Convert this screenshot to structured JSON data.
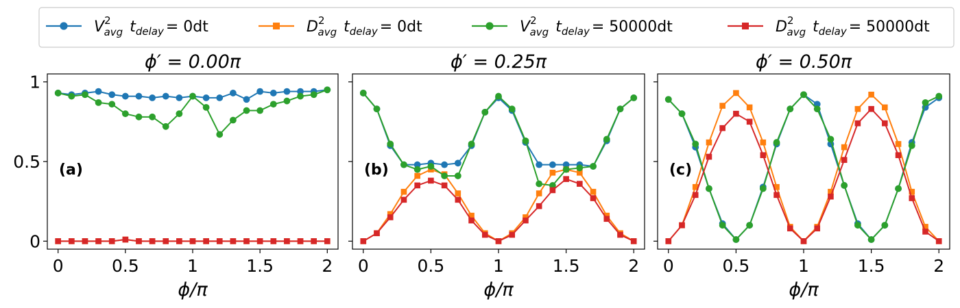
{
  "chart_data": {
    "type": "line",
    "x_values": [
      0,
      0.1,
      0.2,
      0.3,
      0.4,
      0.5,
      0.6,
      0.7,
      0.8,
      0.9,
      1.0,
      1.1,
      1.2,
      1.3,
      1.4,
      1.5,
      1.6,
      1.7,
      1.8,
      1.9,
      2.0
    ],
    "xlim": [
      -0.08,
      2.08
    ],
    "ylim": [
      -0.05,
      1.05
    ],
    "xticks": [
      0,
      0.5,
      1,
      1.5,
      2
    ],
    "xtick_labels": [
      "0",
      "0.5",
      "1",
      "1.5",
      "2"
    ],
    "yticks": [
      0,
      0.5,
      1
    ],
    "ytick_labels": [
      "0",
      "0.5",
      "1"
    ],
    "xlabel": "ϕ/π",
    "legend_position": "top, above panels, 4 columns",
    "legend": [
      {
        "base": "V",
        "sup": "2",
        "sub": "avg",
        "t": "t",
        "tsub": "delay",
        "rest": "= 0dt",
        "color": "#1f77b4",
        "marker": "circle"
      },
      {
        "base": "D",
        "sup": "2",
        "sub": "avg",
        "t": "t",
        "tsub": "delay",
        "rest": "= 0dt",
        "color": "#ff7f0e",
        "marker": "square"
      },
      {
        "base": "V",
        "sup": "2",
        "sub": "avg",
        "t": "t",
        "tsub": "delay",
        "rest": "= 50000dt",
        "color": "#2ca02c",
        "marker": "circle"
      },
      {
        "base": "D",
        "sup": "2",
        "sub": "avg",
        "t": "t",
        "tsub": "delay",
        "rest": "= 50000dt",
        "color": "#d62728",
        "marker": "square"
      }
    ],
    "panels": [
      {
        "title": "ϕ′ = 0.00π",
        "label": "(a)",
        "series": [
          {
            "color": "#1f77b4",
            "marker": "circle",
            "values": [
              0.93,
              0.92,
              0.93,
              0.94,
              0.92,
              0.91,
              0.91,
              0.9,
              0.91,
              0.9,
              0.91,
              0.9,
              0.9,
              0.93,
              0.89,
              0.94,
              0.93,
              0.94,
              0.94,
              0.94,
              0.95
            ]
          },
          {
            "color": "#ff7f0e",
            "marker": "square",
            "values": [
              0.0,
              0.0,
              0.0,
              0.0,
              0.0,
              0.01,
              0.0,
              0.0,
              0.0,
              0.0,
              0.0,
              0.0,
              0.0,
              0.0,
              0.0,
              0.0,
              0.0,
              0.0,
              0.0,
              0.0,
              0.0
            ]
          },
          {
            "color": "#2ca02c",
            "marker": "circle",
            "values": [
              0.93,
              0.91,
              0.92,
              0.87,
              0.86,
              0.8,
              0.78,
              0.78,
              0.72,
              0.8,
              0.91,
              0.84,
              0.67,
              0.76,
              0.82,
              0.82,
              0.86,
              0.88,
              0.91,
              0.92,
              0.95
            ]
          },
          {
            "color": "#d62728",
            "marker": "square",
            "values": [
              0.0,
              0.0,
              0.0,
              0.0,
              0.0,
              0.01,
              0.0,
              0.0,
              0.0,
              0.0,
              0.0,
              0.0,
              0.0,
              0.0,
              0.0,
              0.0,
              0.0,
              0.0,
              0.0,
              0.0,
              0.0
            ]
          }
        ]
      },
      {
        "title": "ϕ′ = 0.25π",
        "label": "(b)",
        "series": [
          {
            "color": "#1f77b4",
            "marker": "circle",
            "values": [
              0.93,
              0.83,
              0.6,
              0.48,
              0.48,
              0.49,
              0.48,
              0.49,
              0.6,
              0.81,
              0.9,
              0.82,
              0.62,
              0.48,
              0.48,
              0.48,
              0.48,
              0.47,
              0.63,
              0.83,
              0.9
            ]
          },
          {
            "color": "#ff7f0e",
            "marker": "square",
            "values": [
              0.0,
              0.05,
              0.17,
              0.31,
              0.41,
              0.45,
              0.42,
              0.3,
              0.16,
              0.05,
              0.0,
              0.05,
              0.15,
              0.3,
              0.43,
              0.45,
              0.43,
              0.31,
              0.16,
              0.05,
              0.0
            ]
          },
          {
            "color": "#2ca02c",
            "marker": "circle",
            "values": [
              0.93,
              0.83,
              0.61,
              0.48,
              0.45,
              0.47,
              0.41,
              0.41,
              0.61,
              0.81,
              0.91,
              0.83,
              0.63,
              0.36,
              0.35,
              0.45,
              0.46,
              0.47,
              0.64,
              0.83,
              0.9
            ]
          },
          {
            "color": "#d62728",
            "marker": "square",
            "values": [
              0.0,
              0.05,
              0.15,
              0.26,
              0.35,
              0.38,
              0.35,
              0.26,
              0.13,
              0.04,
              0.0,
              0.04,
              0.13,
              0.22,
              0.32,
              0.39,
              0.36,
              0.27,
              0.14,
              0.04,
              0.0
            ]
          }
        ]
      },
      {
        "title": "ϕ′ = 0.50π",
        "label": "(c)",
        "series": [
          {
            "color": "#1f77b4",
            "marker": "circle",
            "values": [
              0.89,
              0.8,
              0.59,
              0.33,
              0.11,
              0.01,
              0.1,
              0.34,
              0.61,
              0.83,
              0.92,
              0.86,
              0.61,
              0.35,
              0.11,
              0.01,
              0.1,
              0.33,
              0.62,
              0.84,
              0.9
            ]
          },
          {
            "color": "#ff7f0e",
            "marker": "square",
            "values": [
              0.0,
              0.1,
              0.34,
              0.62,
              0.85,
              0.93,
              0.84,
              0.62,
              0.34,
              0.09,
              0.0,
              0.09,
              0.31,
              0.59,
              0.83,
              0.92,
              0.84,
              0.61,
              0.31,
              0.09,
              0.0
            ]
          },
          {
            "color": "#2ca02c",
            "marker": "circle",
            "values": [
              0.89,
              0.8,
              0.61,
              0.33,
              0.1,
              0.01,
              0.1,
              0.33,
              0.62,
              0.83,
              0.92,
              0.83,
              0.64,
              0.35,
              0.1,
              0.01,
              0.1,
              0.33,
              0.6,
              0.87,
              0.91
            ]
          },
          {
            "color": "#d62728",
            "marker": "square",
            "values": [
              0.0,
              0.1,
              0.29,
              0.53,
              0.71,
              0.8,
              0.75,
              0.54,
              0.29,
              0.08,
              0.0,
              0.08,
              0.28,
              0.51,
              0.74,
              0.83,
              0.74,
              0.54,
              0.27,
              0.06,
              0.0
            ]
          }
        ]
      }
    ]
  }
}
